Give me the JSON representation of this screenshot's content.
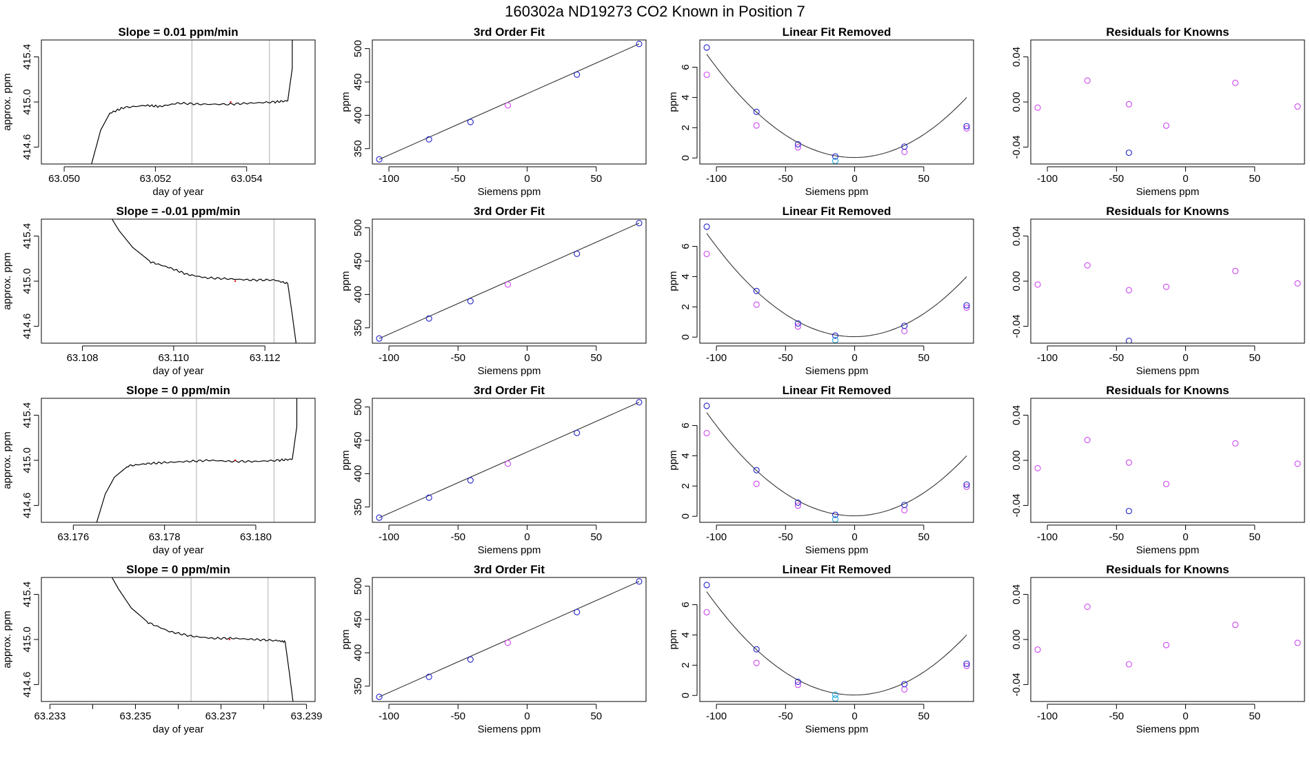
{
  "figure_title": "160302a      ND19273    CO2 Known in Position  7",
  "colors": {
    "trace": "#000000",
    "curve": "#333333",
    "window_line": "#bbbbbb",
    "blue_points": "#2020cc",
    "magenta_points": "#cc44ee",
    "cyan_points": "#22aadd",
    "red_dot": "#ff0000"
  },
  "chart_data": [
    {
      "type": "line",
      "row": 1,
      "col": 1,
      "title": "Slope =  0.01  ppm/min",
      "xlabel": "day of year",
      "ylabel": "approx. ppm",
      "xlim": [
        63.0495,
        63.0555
      ],
      "ylim": [
        414.45,
        415.55
      ],
      "xticks": [
        63.05,
        63.052,
        63.054
      ],
      "xtick_labels": [
        "63.050",
        "63.052",
        "63.054"
      ],
      "yticks": [
        414.6,
        415.0,
        415.4
      ],
      "ytick_labels": [
        "414.6",
        "415.0",
        "415.4"
      ],
      "window": [
        63.0528,
        63.0545
      ],
      "trace": [
        [
          63.0505,
          414.3
        ],
        [
          63.0508,
          414.75
        ],
        [
          63.051,
          414.9
        ],
        [
          63.0513,
          414.95
        ],
        [
          63.0518,
          414.97
        ],
        [
          63.0521,
          414.96
        ],
        [
          63.0525,
          414.99
        ],
        [
          63.053,
          414.98
        ],
        [
          63.0536,
          414.98
        ],
        [
          63.0541,
          414.99
        ],
        [
          63.0546,
          415.0
        ],
        [
          63.0549,
          415.01
        ],
        [
          63.055,
          415.3
        ],
        [
          63.055,
          415.7
        ]
      ]
    },
    {
      "type": "scatter",
      "row": 1,
      "col": 2,
      "title": "3rd Order Fit",
      "xlabel": "Siemens ppm",
      "ylabel": "ppm",
      "xlim": [
        -112,
        86
      ],
      "ylim": [
        327,
        513
      ],
      "xticks": [
        -100,
        -50,
        0,
        50
      ],
      "xtick_labels": [
        "-100",
        "-50",
        "0",
        "50"
      ],
      "yticks": [
        350,
        400,
        450,
        500
      ],
      "ytick_labels": [
        "350",
        "400",
        "450",
        "500"
      ],
      "fit_line": [
        [
          -107,
          334
        ],
        [
          81,
          507
        ]
      ],
      "blue_points": [
        [
          -107,
          334
        ],
        [
          -71,
          364
        ],
        [
          -41,
          390
        ],
        [
          36,
          461
        ],
        [
          81,
          507
        ]
      ],
      "magenta_points": [
        [
          -14,
          415
        ]
      ]
    },
    {
      "type": "scatter",
      "row": 1,
      "col": 3,
      "title": "Linear Fit Removed",
      "xlabel": "Siemens ppm",
      "ylabel": "ppm",
      "xlim": [
        -112,
        86
      ],
      "ylim": [
        -0.4,
        7.8
      ],
      "xticks": [
        -100,
        -50,
        0,
        50
      ],
      "xtick_labels": [
        "-100",
        "-50",
        "0",
        "50"
      ],
      "yticks": [
        0,
        2,
        4,
        6
      ],
      "ytick_labels": [
        "0",
        "2",
        "4",
        "6"
      ],
      "curve_coef": [
        0.0006,
        0.0004,
        0.03
      ],
      "blue_points": [
        [
          -107,
          7.3
        ],
        [
          -71,
          3.05
        ],
        [
          -41,
          0.9
        ],
        [
          -14,
          0.1
        ],
        [
          36,
          0.75
        ],
        [
          81,
          2.1
        ]
      ],
      "magenta_points": [
        [
          -107,
          5.5
        ],
        [
          -71,
          2.15
        ],
        [
          -41,
          0.7
        ],
        [
          36,
          0.4
        ],
        [
          81,
          1.95
        ]
      ],
      "cyan_points": [
        [
          -14,
          -0.2
        ]
      ]
    },
    {
      "type": "scatter",
      "row": 1,
      "col": 4,
      "title": "Residuals for Knowns",
      "xlabel": "Siemens ppm",
      "ylabel": "",
      "xlim": [
        -112,
        86
      ],
      "ylim": [
        -0.055,
        0.055
      ],
      "xticks": [
        -100,
        -50,
        0,
        50
      ],
      "xtick_labels": [
        "-100",
        "-50",
        "0",
        "50"
      ],
      "yticks": [
        -0.04,
        0.0,
        0.04
      ],
      "ytick_labels": [
        "-0.04",
        "0.00",
        "0.04"
      ],
      "blue_points": [
        [
          -41,
          -0.045
        ]
      ],
      "magenta_points": [
        [
          -107,
          -0.005
        ],
        [
          -71,
          0.019
        ],
        [
          -41,
          -0.002
        ],
        [
          -14,
          -0.021
        ],
        [
          36,
          0.017
        ],
        [
          81,
          -0.004
        ]
      ]
    },
    {
      "type": "line",
      "row": 2,
      "col": 1,
      "title": "Slope =  -0.01  ppm/min",
      "xlabel": "day of year",
      "ylabel": "approx. ppm",
      "xlim": [
        63.1071,
        63.1131
      ],
      "ylim": [
        414.45,
        415.55
      ],
      "xticks": [
        63.108,
        63.11,
        63.112
      ],
      "xtick_labels": [
        "63.108",
        "63.110",
        "63.112"
      ],
      "yticks": [
        414.6,
        415.0,
        415.4
      ],
      "ytick_labels": [
        "414.6",
        "415.0",
        "415.4"
      ],
      "window": [
        63.1105,
        63.1122
      ],
      "trace": [
        [
          63.1085,
          415.65
        ],
        [
          63.1088,
          415.45
        ],
        [
          63.1091,
          415.3
        ],
        [
          63.1095,
          415.17
        ],
        [
          63.1099,
          415.12
        ],
        [
          63.1103,
          415.06
        ],
        [
          63.1107,
          415.03
        ],
        [
          63.1112,
          415.02
        ],
        [
          63.1117,
          415.01
        ],
        [
          63.1122,
          415.01
        ],
        [
          63.1125,
          414.98
        ],
        [
          63.1126,
          414.7
        ],
        [
          63.1127,
          414.4
        ]
      ]
    },
    {
      "type": "scatter",
      "row": 2,
      "col": 2,
      "title": "3rd Order Fit",
      "xlabel": "Siemens ppm",
      "ylabel": "ppm",
      "xlim": [
        -112,
        86
      ],
      "ylim": [
        327,
        513
      ],
      "xticks": [
        -100,
        -50,
        0,
        50
      ],
      "xtick_labels": [
        "-100",
        "-50",
        "0",
        "50"
      ],
      "yticks": [
        350,
        400,
        450,
        500
      ],
      "ytick_labels": [
        "350",
        "400",
        "450",
        "500"
      ],
      "fit_line": [
        [
          -107,
          334
        ],
        [
          81,
          507
        ]
      ],
      "blue_points": [
        [
          -107,
          334
        ],
        [
          -71,
          364
        ],
        [
          -41,
          390
        ],
        [
          36,
          461
        ],
        [
          81,
          507
        ]
      ],
      "magenta_points": [
        [
          -14,
          415
        ]
      ]
    },
    {
      "type": "scatter",
      "row": 2,
      "col": 3,
      "title": "Linear Fit Removed",
      "xlabel": "Siemens ppm",
      "ylabel": "ppm",
      "xlim": [
        -112,
        86
      ],
      "ylim": [
        -0.4,
        7.8
      ],
      "xticks": [
        -100,
        -50,
        0,
        50
      ],
      "xtick_labels": [
        "-100",
        "-50",
        "0",
        "50"
      ],
      "yticks": [
        0,
        2,
        4,
        6
      ],
      "ytick_labels": [
        "0",
        "2",
        "4",
        "6"
      ],
      "curve_coef": [
        0.0006,
        0.0004,
        0.03
      ],
      "blue_points": [
        [
          -107,
          7.3
        ],
        [
          -71,
          3.05
        ],
        [
          -41,
          0.9
        ],
        [
          -14,
          0.1
        ],
        [
          36,
          0.75
        ],
        [
          81,
          2.1
        ]
      ],
      "magenta_points": [
        [
          -107,
          5.5
        ],
        [
          -71,
          2.15
        ],
        [
          -41,
          0.7
        ],
        [
          36,
          0.4
        ],
        [
          81,
          1.95
        ]
      ],
      "cyan_points": [
        [
          -14,
          -0.2
        ]
      ]
    },
    {
      "type": "scatter",
      "row": 2,
      "col": 4,
      "title": "Residuals for Knowns",
      "xlabel": "Siemens ppm",
      "ylabel": "",
      "xlim": [
        -112,
        86
      ],
      "ylim": [
        -0.055,
        0.055
      ],
      "xticks": [
        -100,
        -50,
        0,
        50
      ],
      "xtick_labels": [
        "-100",
        "-50",
        "0",
        "50"
      ],
      "yticks": [
        -0.04,
        0.0,
        0.04
      ],
      "ytick_labels": [
        "-0.04",
        "0.00",
        "0.04"
      ],
      "blue_points": [
        [
          -41,
          -0.053
        ]
      ],
      "magenta_points": [
        [
          -107,
          -0.003
        ],
        [
          -71,
          0.014
        ],
        [
          -41,
          -0.008
        ],
        [
          -14,
          -0.005
        ],
        [
          36,
          0.009
        ],
        [
          81,
          -0.002
        ]
      ]
    },
    {
      "type": "line",
      "row": 3,
      "col": 1,
      "title": "Slope =  0  ppm/min",
      "xlabel": "day of year",
      "ylabel": "approx. ppm",
      "xlim": [
        63.1753,
        63.1813
      ],
      "ylim": [
        414.45,
        415.55
      ],
      "xticks": [
        63.176,
        63.178,
        63.18
      ],
      "xtick_labels": [
        "63.176",
        "63.178",
        "63.180"
      ],
      "yticks": [
        414.6,
        415.0,
        415.4
      ],
      "ytick_labels": [
        "414.6",
        "415.0",
        "415.4"
      ],
      "window": [
        63.1787,
        63.1804
      ],
      "trace": [
        [
          63.1764,
          414.3
        ],
        [
          63.1767,
          414.7
        ],
        [
          63.1769,
          414.85
        ],
        [
          63.1772,
          414.95
        ],
        [
          63.1776,
          414.97
        ],
        [
          63.178,
          414.98
        ],
        [
          63.1785,
          414.99
        ],
        [
          63.179,
          415.0
        ],
        [
          63.1795,
          414.99
        ],
        [
          63.18,
          414.99
        ],
        [
          63.1805,
          415.0
        ],
        [
          63.1808,
          415.01
        ],
        [
          63.1809,
          415.3
        ],
        [
          63.1809,
          415.7
        ]
      ]
    },
    {
      "type": "scatter",
      "row": 3,
      "col": 2,
      "title": "3rd Order Fit",
      "xlabel": "Siemens ppm",
      "ylabel": "ppm",
      "xlim": [
        -112,
        86
      ],
      "ylim": [
        327,
        513
      ],
      "xticks": [
        -100,
        -50,
        0,
        50
      ],
      "xtick_labels": [
        "-100",
        "-50",
        "0",
        "50"
      ],
      "yticks": [
        350,
        400,
        450,
        500
      ],
      "ytick_labels": [
        "350",
        "400",
        "450",
        "500"
      ],
      "fit_line": [
        [
          -107,
          334
        ],
        [
          81,
          507
        ]
      ],
      "blue_points": [
        [
          -107,
          334
        ],
        [
          -71,
          364
        ],
        [
          -41,
          390
        ],
        [
          36,
          461
        ],
        [
          81,
          507
        ]
      ],
      "magenta_points": [
        [
          -14,
          415
        ]
      ]
    },
    {
      "type": "scatter",
      "row": 3,
      "col": 3,
      "title": "Linear Fit Removed",
      "xlabel": "Siemens ppm",
      "ylabel": "ppm",
      "xlim": [
        -112,
        86
      ],
      "ylim": [
        -0.4,
        7.8
      ],
      "xticks": [
        -100,
        -50,
        0,
        50
      ],
      "xtick_labels": [
        "-100",
        "-50",
        "0",
        "50"
      ],
      "yticks": [
        0,
        2,
        4,
        6
      ],
      "ytick_labels": [
        "0",
        "2",
        "4",
        "6"
      ],
      "curve_coef": [
        0.0006,
        0.0004,
        0.03
      ],
      "blue_points": [
        [
          -107,
          7.3
        ],
        [
          -71,
          3.05
        ],
        [
          -41,
          0.9
        ],
        [
          -14,
          0.1
        ],
        [
          36,
          0.75
        ],
        [
          81,
          2.1
        ]
      ],
      "magenta_points": [
        [
          -107,
          5.5
        ],
        [
          -71,
          2.15
        ],
        [
          -41,
          0.7
        ],
        [
          36,
          0.4
        ],
        [
          81,
          1.95
        ]
      ],
      "cyan_points": [
        [
          -14,
          -0.2
        ]
      ]
    },
    {
      "type": "scatter",
      "row": 3,
      "col": 4,
      "title": "Residuals for Knowns",
      "xlabel": "Siemens ppm",
      "ylabel": "",
      "xlim": [
        -112,
        86
      ],
      "ylim": [
        -0.055,
        0.055
      ],
      "xticks": [
        -100,
        -50,
        0,
        50
      ],
      "xtick_labels": [
        "-100",
        "-50",
        "0",
        "50"
      ],
      "yticks": [
        -0.04,
        0.0,
        0.04
      ],
      "ytick_labels": [
        "-0.04",
        "0.00",
        "0.04"
      ],
      "blue_points": [
        [
          -41,
          -0.045
        ]
      ],
      "magenta_points": [
        [
          -107,
          -0.007
        ],
        [
          -71,
          0.018
        ],
        [
          -41,
          -0.002
        ],
        [
          -14,
          -0.021
        ],
        [
          36,
          0.015
        ],
        [
          81,
          -0.003
        ]
      ]
    },
    {
      "type": "line",
      "row": 4,
      "col": 1,
      "title": "Slope =  0  ppm/min",
      "xlabel": "day of year",
      "ylabel": "approx. ppm",
      "xlim": [
        63.2328,
        63.2392
      ],
      "ylim": [
        414.45,
        415.55
      ],
      "xticks": [
        63.233,
        63.234,
        63.235,
        63.236,
        63.237,
        63.238,
        63.239
      ],
      "xtick_labels": [
        "63.233",
        "",
        "63.235",
        "",
        "63.237",
        "",
        "63.239"
      ],
      "yticks": [
        414.6,
        415.0,
        415.4
      ],
      "ytick_labels": [
        "414.6",
        "415.0",
        "415.4"
      ],
      "window": [
        63.2363,
        63.2381
      ],
      "trace": [
        [
          63.2343,
          415.65
        ],
        [
          63.2346,
          415.45
        ],
        [
          63.2349,
          415.28
        ],
        [
          63.2353,
          415.15
        ],
        [
          63.2358,
          415.07
        ],
        [
          63.2363,
          415.03
        ],
        [
          63.2368,
          415.01
        ],
        [
          63.2373,
          415.01
        ],
        [
          63.2378,
          415.0
        ],
        [
          63.2383,
          414.99
        ],
        [
          63.2385,
          414.98
        ],
        [
          63.2386,
          414.7
        ],
        [
          63.2387,
          414.4
        ]
      ]
    },
    {
      "type": "scatter",
      "row": 4,
      "col": 2,
      "title": "3rd Order Fit",
      "xlabel": "Siemens ppm",
      "ylabel": "ppm",
      "xlim": [
        -112,
        86
      ],
      "ylim": [
        327,
        513
      ],
      "xticks": [
        -100,
        -50,
        0,
        50
      ],
      "xtick_labels": [
        "-100",
        "-50",
        "0",
        "50"
      ],
      "yticks": [
        350,
        400,
        450,
        500
      ],
      "ytick_labels": [
        "350",
        "400",
        "450",
        "500"
      ],
      "fit_line": [
        [
          -107,
          334
        ],
        [
          81,
          507
        ]
      ],
      "blue_points": [
        [
          -107,
          334
        ],
        [
          -71,
          364
        ],
        [
          -41,
          390
        ],
        [
          36,
          461
        ],
        [
          81,
          507
        ]
      ],
      "magenta_points": [
        [
          -14,
          415
        ]
      ]
    },
    {
      "type": "scatter",
      "row": 4,
      "col": 3,
      "title": "Linear Fit Removed",
      "xlabel": "Siemens ppm",
      "ylabel": "ppm",
      "xlim": [
        -112,
        86
      ],
      "ylim": [
        -0.4,
        7.8
      ],
      "xticks": [
        -100,
        -50,
        0,
        50
      ],
      "xtick_labels": [
        "-100",
        "-50",
        "0",
        "50"
      ],
      "yticks": [
        0,
        2,
        4,
        6
      ],
      "ytick_labels": [
        "0",
        "2",
        "4",
        "6"
      ],
      "curve_coef": [
        0.0006,
        0.0004,
        0.03
      ],
      "blue_points": [
        [
          -107,
          7.3
        ],
        [
          -71,
          3.05
        ],
        [
          -41,
          0.9
        ],
        [
          36,
          0.75
        ],
        [
          81,
          2.1
        ]
      ],
      "magenta_points": [
        [
          -107,
          5.5
        ],
        [
          -71,
          2.15
        ],
        [
          -41,
          0.7
        ],
        [
          36,
          0.4
        ],
        [
          81,
          1.95
        ]
      ],
      "cyan_points": [
        [
          -14,
          0.05
        ],
        [
          -14,
          -0.2
        ]
      ]
    },
    {
      "type": "scatter",
      "row": 4,
      "col": 4,
      "title": "Residuals for Knowns",
      "xlabel": "Siemens ppm",
      "ylabel": "",
      "xlim": [
        -112,
        86
      ],
      "ylim": [
        -0.055,
        0.055
      ],
      "xticks": [
        -100,
        -50,
        0,
        50
      ],
      "xtick_labels": [
        "-100",
        "-50",
        "0",
        "50"
      ],
      "yticks": [
        -0.04,
        0.0,
        0.04
      ],
      "ytick_labels": [
        "-0.04",
        "0.00",
        "0.04"
      ],
      "blue_points": [],
      "magenta_points": [
        [
          -107,
          -0.009
        ],
        [
          -71,
          0.029
        ],
        [
          -41,
          -0.022
        ],
        [
          -14,
          -0.005
        ],
        [
          36,
          0.013
        ],
        [
          81,
          -0.003
        ]
      ]
    }
  ]
}
